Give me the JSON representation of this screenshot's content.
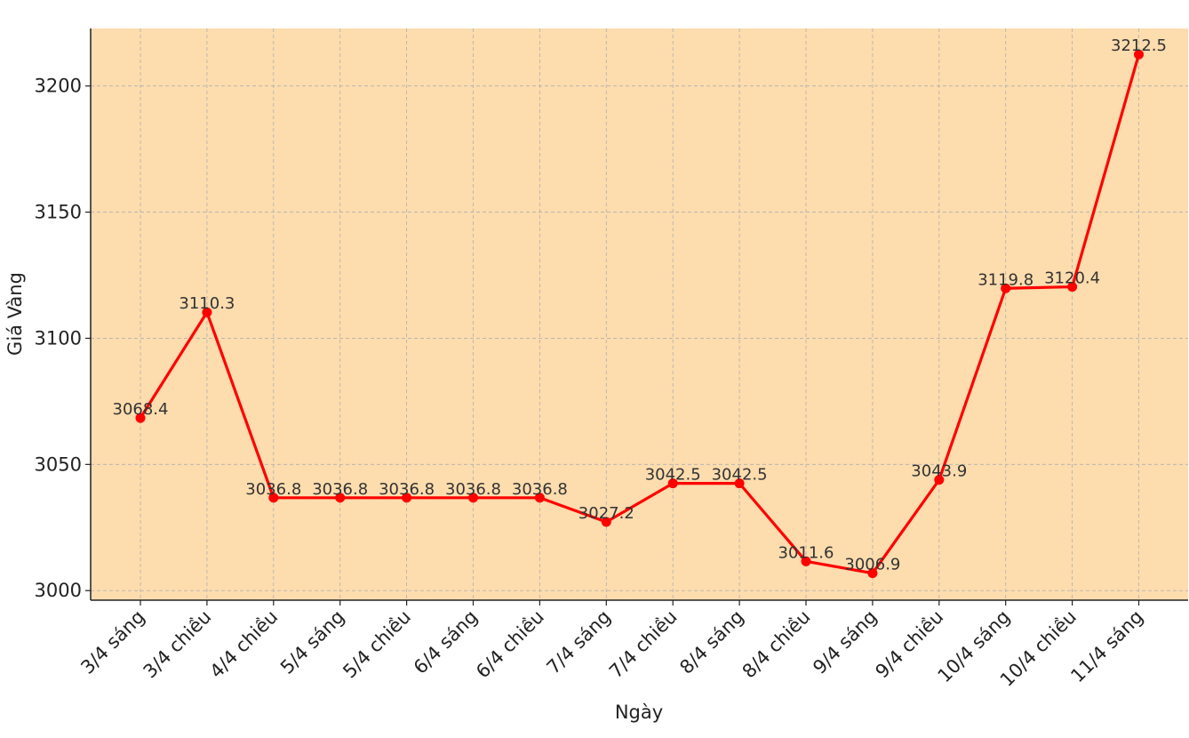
{
  "chart_data": {
    "type": "line",
    "title": "",
    "xlabel": "Ngày",
    "ylabel": "Giá Vàng",
    "categories": [
      "3/4 sáng",
      "3/4 chiều",
      "4/4 chiều",
      "5/4 sáng",
      "5/4 chiều",
      "6/4 sáng",
      "6/4 chiều",
      "7/4 sáng",
      "7/4 chiều",
      "8/4 sáng",
      "8/4 chiều",
      "9/4 sáng",
      "9/4 chiều",
      "10/4 sáng",
      "10/4 chiều",
      "11/4 sáng"
    ],
    "series": [
      {
        "values": [
          3068.4,
          3110.3,
          3036.8,
          3036.8,
          3036.8,
          3036.8,
          3036.8,
          3027.2,
          3042.5,
          3042.5,
          3011.6,
          3006.9,
          3043.9,
          3119.8,
          3120.4,
          3212.5
        ],
        "color": "#ff0000"
      }
    ],
    "data_labels": [
      "3068.4",
      "3110.3",
      "3036.8",
      "3036.8",
      "3036.8",
      "3036.8",
      "3036.8",
      "3027.2",
      "3042.5",
      "3042.5",
      "3011.6",
      "3006.9",
      "3043.9",
      "3119.8",
      "3120.4",
      "3212.5"
    ],
    "ylim": [
      2996.2,
      3222.8
    ],
    "yticks": [
      3000,
      3050,
      3100,
      3150,
      3200
    ],
    "ytick_labels": [
      "3000",
      "3050",
      "3100",
      "3150",
      "3200"
    ],
    "grid": true,
    "legend": "none",
    "background_color": "#fddcae",
    "grid_color": "#b0b0b0"
  }
}
